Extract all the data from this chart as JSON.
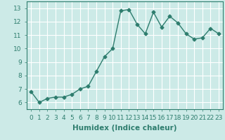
{
  "x": [
    0,
    1,
    2,
    3,
    4,
    5,
    6,
    7,
    8,
    9,
    10,
    11,
    12,
    13,
    14,
    15,
    16,
    17,
    18,
    19,
    20,
    21,
    22,
    23
  ],
  "y": [
    6.8,
    6.0,
    6.3,
    6.4,
    6.4,
    6.6,
    7.0,
    7.2,
    8.3,
    9.4,
    10.0,
    12.8,
    12.9,
    11.8,
    11.1,
    12.7,
    11.6,
    12.4,
    11.9,
    11.1,
    10.7,
    10.8,
    11.5,
    11.1
  ],
  "line_color": "#2e7d6e",
  "marker": "D",
  "marker_size": 2.5,
  "background_color": "#cceae7",
  "grid_color": "#ffffff",
  "xlabel": "Humidex (Indice chaleur)",
  "xlim": [
    -0.5,
    23.5
  ],
  "ylim": [
    5.5,
    13.5
  ],
  "yticks": [
    6,
    7,
    8,
    9,
    10,
    11,
    12,
    13
  ],
  "xticks": [
    0,
    1,
    2,
    3,
    4,
    5,
    6,
    7,
    8,
    9,
    10,
    11,
    12,
    13,
    14,
    15,
    16,
    17,
    18,
    19,
    20,
    21,
    22,
    23
  ],
  "xlabel_fontsize": 7.5,
  "tick_fontsize": 6.5,
  "line_width": 1.0
}
